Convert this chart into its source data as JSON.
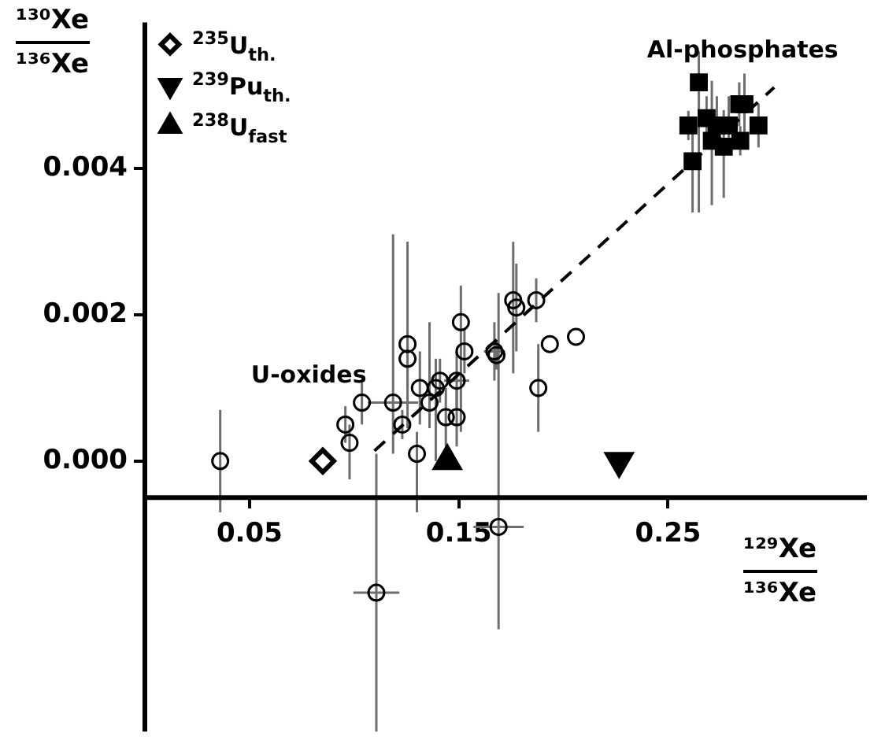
{
  "chart_data": {
    "type": "scatter",
    "ylabel": "¹³⁰Xe\n¹³⁶Xe",
    "xlabel": "¹²⁹Xe\n¹³⁶Xe",
    "xlim": [
      0,
      0.345
    ],
    "ylim": [
      -0.0037,
      0.006
    ],
    "xticks": [
      {
        "value": 0,
        "label": null
      },
      0.05,
      0.15,
      0.25
    ],
    "yticks": [
      {
        "value": 0,
        "label": "0.000"
      },
      {
        "value": 0.002,
        "label": "0.002"
      },
      {
        "value": 0.004,
        "label": "0.004"
      }
    ],
    "grid": false,
    "legend": "top left",
    "series": [
      {
        "name": "U-oxides",
        "color": "#000000",
        "marker": "circle",
        "x": [
          0.036,
          0.0958,
          0.0978,
          0.1037,
          0.1186,
          0.123,
          0.1255,
          0.1255,
          0.13,
          0.1314,
          0.136,
          0.139,
          0.141,
          0.1438,
          0.149,
          0.149,
          0.151,
          0.1527,
          0.167,
          0.168,
          0.176,
          0.1775,
          0.187,
          0.188,
          0.1935,
          0.206,
          0.169,
          0.1106
        ],
        "values": [
          0,
          0.0005,
          0.00025,
          0.0008,
          0.0008,
          0.0005,
          0.0016,
          0.0014,
          0.0001,
          0.001,
          0.0008,
          0.001,
          0.0011,
          0.0006,
          0.0006,
          0.0011,
          0.0019,
          0.0015,
          0.0015,
          0.00145,
          0.0022,
          0.0021,
          0.0022,
          0.001,
          0.0016,
          0.0017,
          -0.0009,
          -0.0018
        ],
        "errors": [
          0.0007,
          0.00025,
          [
            -0.00025,
            0.0005
          ],
          0.0003,
          [
            0.0001,
            0.0031
          ],
          0.0002,
          [
            0.00045,
            0.003
          ],
          0.0004,
          [
            -0.0007,
            0.0004
          ],
          0.0005,
          [
            0.00045,
            0.0019
          ],
          [
            0,
            0.0014
          ],
          0.0003,
          0.0004,
          0.0004,
          0.0004,
          [
            0.0004,
            0.0024
          ],
          0.0003,
          0.0004,
          0.0002,
          [
            0.0012,
            0.003
          ],
          0.0006,
          0.0003,
          [
            0.0004,
            0.0016
          ],
          null,
          null,
          [
            -0.0023,
            0.0023
          ],
          [
            -0.0037,
            0.0001
          ]
        ],
        "xerrors": [
          null,
          null,
          null,
          null,
          0.012,
          null,
          null,
          null,
          null,
          null,
          null,
          null,
          null,
          null,
          null,
          0.006,
          null,
          null,
          0.005,
          null,
          null,
          null,
          null,
          null,
          null,
          null,
          0.012,
          0.011
        ]
      },
      {
        "name": "Al-phosphates",
        "color": "#000000",
        "marker": "square",
        "x": [
          0.2647,
          0.2865,
          0.284,
          0.2684,
          0.2597,
          0.2733,
          0.279,
          0.2932,
          0.2709,
          0.2766,
          0.2845,
          0.2617
        ],
        "values": [
          0.00518,
          0.00488,
          0.00488,
          0.00469,
          0.00459,
          0.00459,
          0.00459,
          0.00459,
          0.00438,
          0.0043,
          0.00438,
          0.0041
        ],
        "errors": [
          [
            0.0034,
            0.0056
          ],
          [
            0.0045,
            0.0053
          ],
          0.0003,
          0.0003,
          0.0002,
          0.0004,
          0.0004,
          0.0003,
          [
            0.0035,
            0.0052
          ],
          [
            0.0036,
            0.0048
          ],
          0.0002,
          [
            0.0034,
            0.0047
          ]
        ]
      },
      {
        "name": "$^{235}$U$_{th.}$",
        "color": "#000000",
        "marker": "diamond",
        "x": [
          0.085
        ],
        "values": [
          0
        ]
      },
      {
        "name": "$^{239}$Pu$_{th.}$",
        "color": "#000000",
        "marker": "triangle-down",
        "x": [
          0.2266
        ],
        "values": [
          0
        ]
      },
      {
        "name": "$^{238}$U$_{fast}$",
        "color": "#000000",
        "marker": "triangle",
        "x": [
          0.1445
        ],
        "values": [
          0
        ]
      },
      {
        "type": "line",
        "color": "#000000",
        "line_style": "dashed",
        "marker": "none",
        "x": [
          0.1097,
          0.3007
        ],
        "values": [
          0.00014,
          0.00511
        ]
      }
    ]
  }
}
